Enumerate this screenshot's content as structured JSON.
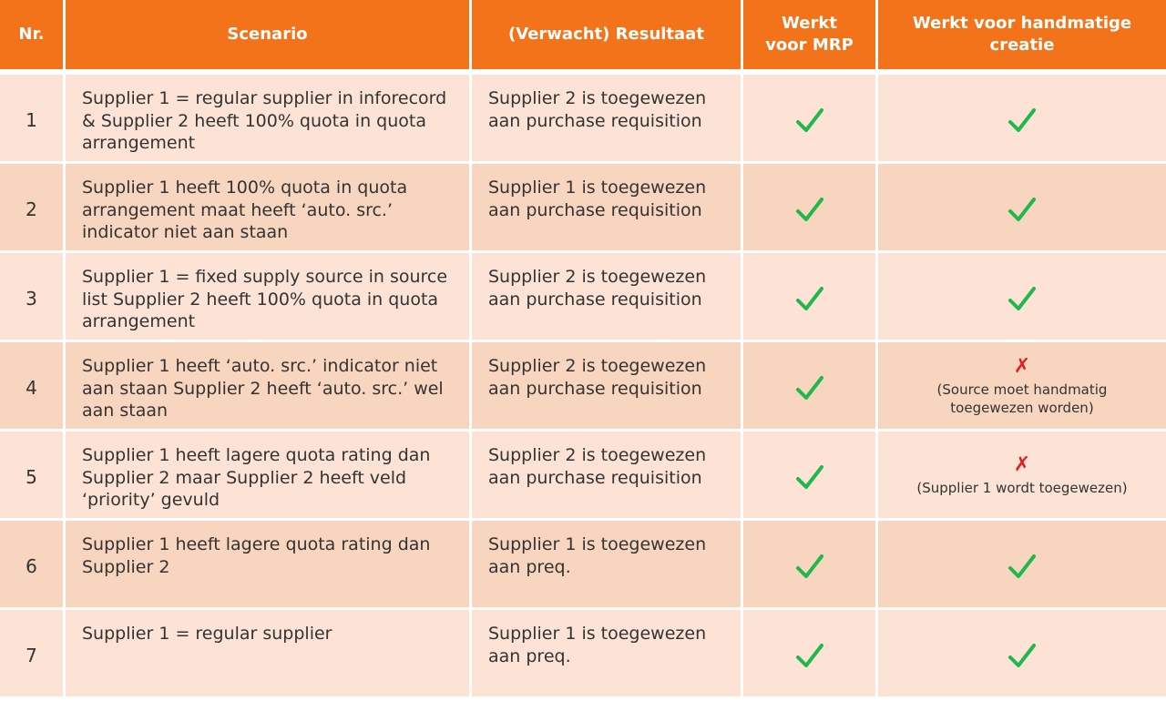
{
  "colors": {
    "header_bg": "#f27319",
    "row_light": "#fce3d5",
    "row_dark": "#f8d5bf",
    "check": "#1fb84a",
    "cross": "#e02020"
  },
  "headers": {
    "nr": "Nr.",
    "scenario": "Scenario",
    "resultaat": "(Verwacht) Resultaat",
    "mrp": "Werkt\nvoor MRP",
    "handmatig": "Werkt voor handmatige\ncreatie"
  },
  "rows": [
    {
      "nr": "1",
      "scenario": "Supplier 1 = regular supplier in inforecord\n& Supplier 2 heeft 100% quota in quota\narrangement",
      "resultaat": "Supplier 2 is toegewezen\naan purchase requisition",
      "mrp": "check-icon",
      "handmatig": "check-icon",
      "handmatig_note": ""
    },
    {
      "nr": "2",
      "scenario": "Supplier 1 heeft 100% quota in quota\narrangement maat heeft ‘auto. src.’\nindicator niet aan staan",
      "resultaat": "Supplier 1 is toegewezen\naan purchase requisition",
      "mrp": "check-icon",
      "handmatig": "check-icon",
      "handmatig_note": ""
    },
    {
      "nr": "3",
      "scenario": "Supplier 1 = fixed supply source in source\nlist Supplier 2 heeft 100% quota in quota\narrangement",
      "resultaat": "Supplier 2 is toegewezen\naan purchase requisition",
      "mrp": "check-icon",
      "handmatig": "check-icon",
      "handmatig_note": ""
    },
    {
      "nr": "4",
      "scenario": "Supplier 1 heeft ‘auto. src.’ indicator niet\naan staan Supplier 2 heeft ‘auto. src.’ wel\naan staan",
      "resultaat": "Supplier 2 is toegewezen\naan purchase requisition",
      "mrp": "check-icon",
      "handmatig": "cross-icon",
      "cross_glyph": "✗",
      "handmatig_note": "(Source moet handmatig\ntoegewezen worden)"
    },
    {
      "nr": "5",
      "scenario": "Supplier 1 heeft lagere quota rating dan\nSupplier 2 maar Supplier 2 heeft veld\n‘priority’ gevuld",
      "resultaat": "Supplier 2 is toegewezen\naan purchase requisition",
      "mrp": "check-icon",
      "handmatig": "cross-icon",
      "cross_glyph": "✗",
      "handmatig_note": "(Supplier 1 wordt toegewezen)"
    },
    {
      "nr": "6",
      "scenario": "Supplier 1 heeft lagere quota rating dan\nSupplier 2",
      "resultaat": "Supplier 1 is toegewezen\naan preq.",
      "mrp": "check-icon",
      "handmatig": "check-icon",
      "handmatig_note": ""
    },
    {
      "nr": "7",
      "scenario": "Supplier 1 = regular supplier",
      "resultaat": "Supplier 1 is toegewezen\naan preq.",
      "mrp": "check-icon",
      "handmatig": "check-icon",
      "handmatig_note": ""
    }
  ]
}
